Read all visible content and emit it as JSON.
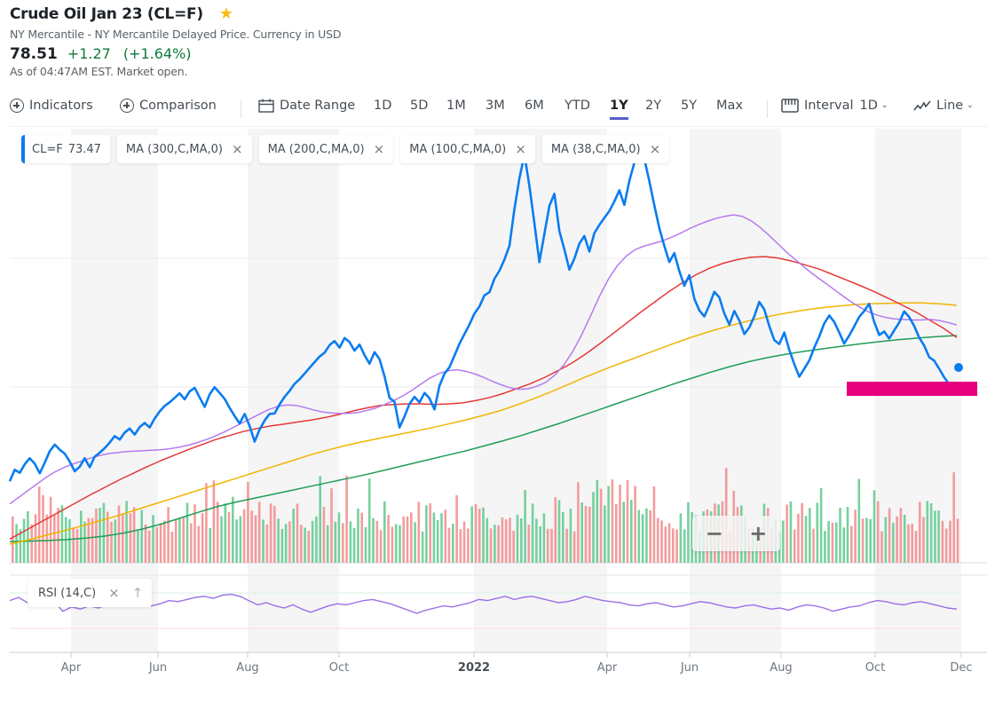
{
  "header": {
    "title": "Crude Oil Jan 23 (CL=F)",
    "star_icon": "star-icon",
    "subtitle": "NY Mercantile - NY Mercantile Delayed Price. Currency in USD",
    "price": "78.51",
    "change": "+1.27",
    "change_pct": "(+1.64%)",
    "as_of": "As of 04:47AM EST. Market open.",
    "colors": {
      "positive": "#0f7a3b",
      "star": "#fdb813"
    }
  },
  "toolbar": {
    "indicators": "Indicators",
    "comparison": "Comparison",
    "date_range": "Date Range",
    "ranges": [
      "1D",
      "5D",
      "1M",
      "3M",
      "6M",
      "YTD",
      "1Y",
      "2Y",
      "5Y",
      "Max"
    ],
    "active_range": "1Y",
    "interval_label": "Interval",
    "interval_value": "1D",
    "chart_type": "Line",
    "accent": "#5b5ec9"
  },
  "legend": {
    "symbol": "CL=F",
    "last_value": "73.47",
    "indicators": [
      {
        "label": "MA (300,C,MA,0)",
        "color": "#1f9d55"
      },
      {
        "label": "MA (200,C,MA,0)",
        "color": "#f0b500"
      },
      {
        "label": "MA (100,C,MA,0)",
        "color": "#e53935"
      },
      {
        "label": "MA (38,C,MA,0)",
        "color": "#b57bee"
      }
    ],
    "close_glyph": "×"
  },
  "zoom_controls": {
    "minus": "−",
    "plus": "+"
  },
  "rsi": {
    "label": "RSI (14,C)",
    "close_glyph": "×",
    "up_glyph": "↑",
    "color": "#9b6fe6"
  },
  "chart_data": {
    "type": "line",
    "title": "Crude Oil Jan 23 (CL=F)",
    "xlabel": "",
    "ylabel": "",
    "x_ticks": [
      "Apr",
      "Jun",
      "Aug",
      "Oct",
      "2022",
      "Apr",
      "Jun",
      "Aug",
      "Oct",
      "Dec"
    ],
    "year_tick": "2022",
    "grid": true,
    "legend_placement": "top-left",
    "price_color": "#0a7cf0",
    "last_price": 73.47,
    "highlight_color": "#e6007e",
    "price": [
      55.5,
      57.8,
      57.2,
      58.9,
      60.1,
      59.0,
      57.1,
      59.2,
      61.5,
      62.8,
      61.8,
      61.0,
      59.4,
      57.5,
      58.4,
      60.1,
      58.3,
      60.4,
      61.2,
      62.1,
      63.2,
      64.5,
      63.8,
      65.2,
      66.0,
      64.8,
      66.3,
      67.1,
      66.2,
      68.0,
      69.4,
      70.5,
      71.2,
      72.1,
      73.0,
      71.8,
      73.4,
      74.1,
      72.2,
      70.3,
      72.8,
      74.2,
      73.1,
      71.9,
      70.1,
      68.5,
      67.0,
      68.9,
      66.5,
      63.4,
      65.8,
      67.6,
      68.9,
      69.0,
      70.8,
      72.3,
      73.5,
      74.9,
      75.8,
      76.9,
      78.1,
      79.2,
      80.3,
      81.1,
      82.6,
      83.4,
      82.1,
      84.0,
      83.2,
      81.5,
      82.7,
      80.6,
      78.9,
      81.2,
      79.8,
      76.4,
      72.1,
      71.3,
      66.2,
      68.4,
      70.9,
      72.3,
      71.2,
      73.1,
      72.0,
      69.8,
      74.5,
      76.9,
      78.2,
      80.5,
      82.9,
      84.8,
      86.7,
      88.9,
      90.3,
      92.5,
      93.1,
      95.8,
      97.4,
      99.6,
      102.4,
      109.7,
      115.8,
      120.5,
      114.2,
      106.8,
      99.1,
      104.8,
      110.3,
      112.7,
      105.2,
      101.6,
      97.6,
      99.8,
      102.8,
      104.3,
      101.2,
      104.9,
      106.5,
      107.9,
      109.3,
      111.2,
      113.4,
      110.5,
      115.3,
      118.9,
      122.1,
      119.6,
      115.2,
      110.4,
      105.8,
      102.3,
      99.1,
      100.9,
      97.3,
      94.4,
      96.5,
      91.8,
      89.5,
      88.3,
      90.5,
      93.2,
      92.1,
      88.9,
      86.7,
      89.4,
      87.5,
      84.8,
      86.1,
      88.3,
      91.2,
      89.7,
      86.4,
      83.6,
      82.8,
      85.1,
      81.7,
      78.8,
      76.3,
      77.9,
      79.5,
      82.1,
      84.3,
      86.9,
      88.5,
      87.2,
      85.1,
      82.9,
      84.5,
      86.3,
      88.2,
      89.4,
      90.8,
      87.2,
      84.6,
      85.3,
      83.9,
      85.5,
      87.1,
      89.3,
      88.2,
      86.4,
      84.1,
      82.5,
      80.2,
      79.5,
      77.9,
      76.2,
      74.8,
      73.47
    ],
    "ma38": [
      51.0,
      52.3,
      53.6,
      54.9,
      56.2,
      57.3,
      58.2,
      58.9,
      59.5,
      60.1,
      60.6,
      61.0,
      61.2,
      61.4,
      61.5,
      61.6,
      61.7,
      61.8,
      62.0,
      62.3,
      62.7,
      63.2,
      63.8,
      64.5,
      65.3,
      66.2,
      67.1,
      68.0,
      68.9,
      69.8,
      70.4,
      70.7,
      70.6,
      70.2,
      69.7,
      69.3,
      69.1,
      69.0,
      69.0,
      69.2,
      69.6,
      70.1,
      70.8,
      71.6,
      72.5,
      73.6,
      74.8,
      76.0,
      76.9,
      77.5,
      77.7,
      77.4,
      76.9,
      76.2,
      75.4,
      74.7,
      74.1,
      73.8,
      73.9,
      74.4,
      75.2,
      76.6,
      78.6,
      81.3,
      84.6,
      88.4,
      92.3,
      95.7,
      98.4,
      100.3,
      101.6,
      102.3,
      102.8,
      103.3,
      104.0,
      104.8,
      105.7,
      106.5,
      107.2,
      107.8,
      108.2,
      108.5,
      108.2,
      107.3,
      106.0,
      104.4,
      102.7,
      101.0,
      99.5,
      98.0,
      96.6,
      95.3,
      94.0,
      92.7,
      91.4,
      90.3,
      89.3,
      88.6,
      88.1,
      87.8,
      87.7,
      87.6,
      87.6,
      87.7,
      87.5,
      87.1,
      86.6
    ],
    "ma100": [
      44.0,
      45.5,
      47.0,
      48.5,
      50.0,
      51.5,
      53.0,
      54.4,
      55.8,
      57.1,
      58.4,
      59.6,
      60.7,
      61.8,
      62.8,
      63.8,
      64.6,
      65.4,
      66.0,
      66.5,
      66.9,
      67.3,
      67.7,
      68.2,
      68.8,
      69.5,
      70.1,
      70.6,
      70.8,
      70.9,
      70.9,
      70.8,
      70.9,
      71.1,
      71.6,
      72.2,
      73.0,
      74.0,
      75.0,
      76.2,
      77.6,
      79.1,
      80.9,
      82.9,
      85.0,
      87.1,
      89.2,
      91.2,
      93.2,
      95.0,
      96.6,
      97.9,
      98.9,
      99.6,
      100.1,
      100.2,
      99.9,
      99.3,
      98.5,
      97.7,
      96.6,
      95.5,
      94.4,
      93.2,
      91.9,
      90.6,
      89.2,
      87.6,
      86.0,
      84.1
    ],
    "ma200": [
      43.0,
      43.8,
      44.7,
      45.6,
      46.5,
      47.5,
      48.5,
      49.6,
      50.7,
      51.8,
      52.9,
      54.0,
      55.1,
      56.2,
      57.3,
      58.4,
      59.5,
      60.6,
      61.6,
      62.5,
      63.3,
      64.0,
      64.7,
      65.4,
      66.1,
      66.9,
      67.7,
      68.6,
      69.6,
      70.8,
      72.1,
      73.5,
      75.0,
      76.5,
      77.9,
      79.2,
      80.5,
      81.8,
      83.1,
      84.3,
      85.4,
      86.4,
      87.3,
      88.1,
      88.8,
      89.4,
      89.9,
      90.3,
      90.6,
      90.8,
      90.9,
      91.0,
      91.0,
      90.8,
      90.5
    ],
    "ma300": [
      43.5,
      43.6,
      43.7,
      43.9,
      44.2,
      44.6,
      45.2,
      46.0,
      47.0,
      48.2,
      49.4,
      50.5,
      51.4,
      52.2,
      53.0,
      53.8,
      54.6,
      55.4,
      56.2,
      57.0,
      57.9,
      58.8,
      59.7,
      60.6,
      61.5,
      62.5,
      63.5,
      64.6,
      65.8,
      67.0,
      68.3,
      69.6,
      70.9,
      72.2,
      73.5,
      74.8,
      76.0,
      77.2,
      78.3,
      79.3,
      80.1,
      80.8,
      81.4,
      81.9,
      82.4,
      82.9,
      83.3,
      83.7,
      84.0,
      84.3,
      84.5
    ],
    "volume_colors": {
      "up": "#5ec98d",
      "down": "#f28b8b"
    },
    "rsi_values": [
      62,
      65,
      60,
      58,
      63,
      61,
      52,
      56,
      54,
      57,
      55,
      58,
      57,
      59,
      60,
      61,
      57,
      59,
      62,
      61,
      63,
      65,
      66,
      64,
      67,
      68,
      66,
      62,
      58,
      60,
      57,
      55,
      58,
      54,
      51,
      54,
      57,
      59,
      58,
      60,
      62,
      63,
      61,
      59,
      56,
      53,
      50,
      53,
      55,
      57,
      56,
      58,
      60,
      63,
      62,
      64,
      66,
      63,
      65,
      66,
      64,
      62,
      60,
      61,
      63,
      66,
      64,
      62,
      61,
      60,
      58,
      57,
      59,
      60,
      58,
      56,
      57,
      59,
      61,
      60,
      58,
      56,
      55,
      57,
      58,
      56,
      54,
      55,
      53,
      56,
      58,
      57,
      55,
      52,
      54,
      56,
      57,
      60,
      62,
      61,
      59,
      58,
      60,
      61,
      59,
      57,
      55,
      54
    ]
  },
  "x_axis": {
    "labels": [
      "Apr",
      "Jun",
      "Aug",
      "Oct",
      "2022",
      "Apr",
      "Jun",
      "Aug",
      "Oct",
      "Dec"
    ]
  }
}
